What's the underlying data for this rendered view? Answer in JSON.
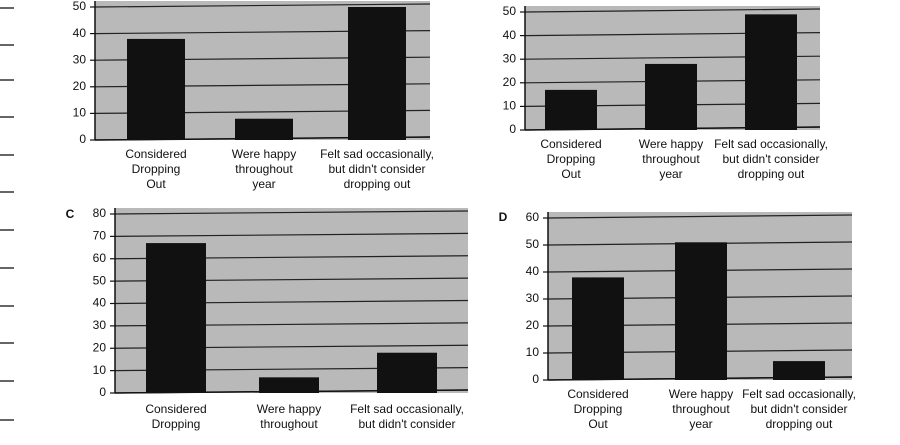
{
  "chart_data": [
    {
      "type": "bar",
      "categories": [
        [
          "Considered",
          "Dropping",
          "Out"
        ],
        [
          "Were happy",
          "throughout",
          "year"
        ],
        [
          "Felt sad occasionally,",
          "but didn't consider",
          "dropping out"
        ]
      ],
      "values": [
        38,
        8,
        50
      ],
      "color": "#111111",
      "ylim": [
        0,
        50
      ],
      "yticks": [
        0,
        10,
        20,
        30,
        40,
        50
      ],
      "grid": true
    },
    {
      "type": "bar",
      "categories": [
        [
          "Considered",
          "Dropping",
          "Out"
        ],
        [
          "Were happy",
          "throughout",
          "year"
        ],
        [
          "Felt sad occasionally,",
          "but didn't consider",
          "dropping out"
        ]
      ],
      "values": [
        17,
        28,
        49
      ],
      "color": "#111111",
      "ylim": [
        0,
        50
      ],
      "yticks": [
        0,
        10,
        20,
        30,
        40,
        50
      ],
      "grid": true
    },
    {
      "type": "bar",
      "panel_label": "C",
      "categories": [
        [
          "Considered",
          "Dropping"
        ],
        [
          "Were happy",
          "throughout"
        ],
        [
          "Felt sad occasionally,",
          "but didn't consider"
        ]
      ],
      "values": [
        67,
        7,
        18
      ],
      "color": "#111111",
      "ylim": [
        0,
        80
      ],
      "yticks": [
        0,
        10,
        20,
        30,
        40,
        50,
        60,
        70,
        80
      ],
      "grid": true
    },
    {
      "type": "bar",
      "panel_label": "D",
      "categories": [
        [
          "Considered",
          "Dropping",
          "Out"
        ],
        [
          "Were happy",
          "throughout",
          "year"
        ],
        [
          "Felt sad occasionally,",
          "but didn't consider",
          "dropping out"
        ]
      ],
      "values": [
        38,
        51,
        7
      ],
      "color": "#111111",
      "ylim": [
        0,
        60
      ],
      "yticks": [
        0,
        10,
        20,
        30,
        40,
        50,
        60
      ],
      "grid": true
    }
  ]
}
